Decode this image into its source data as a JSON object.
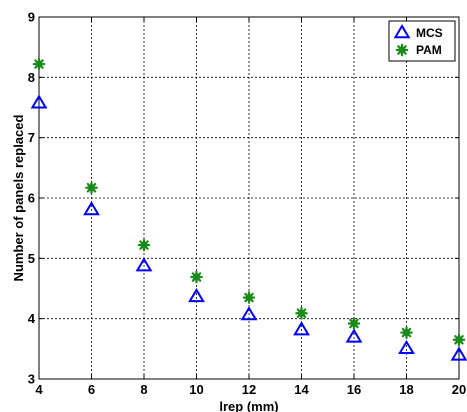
{
  "chart_data": {
    "type": "scatter",
    "xlabel": "lrep (mm)",
    "ylabel": "Number of panels replaced",
    "xlim": [
      4,
      20
    ],
    "ylim": [
      3,
      9
    ],
    "xticks": [
      4,
      6,
      8,
      10,
      12,
      14,
      16,
      18,
      20
    ],
    "yticks": [
      3,
      4,
      5,
      6,
      7,
      8,
      9
    ],
    "grid": true,
    "legend_position": "top-right",
    "series": [
      {
        "name": "MCS",
        "marker": "triangle-open",
        "color": "#0000ff",
        "x": [
          4,
          6,
          8,
          10,
          12,
          14,
          16,
          18,
          20
        ],
        "y": [
          7.57,
          5.8,
          4.87,
          4.36,
          4.06,
          3.81,
          3.69,
          3.5,
          3.39
        ]
      },
      {
        "name": "PAM",
        "marker": "filled-star",
        "color": "#1a8a1a",
        "x": [
          4,
          6,
          8,
          10,
          12,
          14,
          16,
          18,
          20
        ],
        "y": [
          8.22,
          6.17,
          5.22,
          4.69,
          4.35,
          4.09,
          3.92,
          3.77,
          3.65
        ]
      }
    ]
  }
}
